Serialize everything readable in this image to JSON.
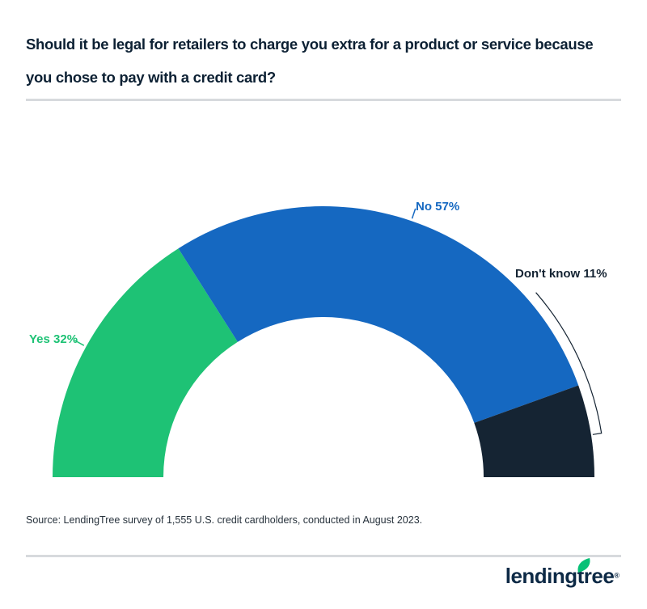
{
  "chart_data": {
    "type": "pie",
    "variant": "half-donut",
    "title": "Should it be legal for retailers to charge you extra for a product or service because you chose to pay with a credit card?",
    "unit": "%",
    "start_angle_deg": 180,
    "end_angle_deg": 0,
    "inner_radius_ratio": 0.59,
    "legend_position": "labels-around-arc",
    "segments": [
      {
        "name": "Yes",
        "value": 32,
        "label": "Yes 32%",
        "color": "#1EC275",
        "callout": "tick"
      },
      {
        "name": "No",
        "value": 57,
        "label": "No 57%",
        "color": "#1568C1",
        "callout": "tick"
      },
      {
        "name": "Don't know",
        "value": 11,
        "label": "Don't know 11%",
        "color": "#152433",
        "callout": "bracket"
      }
    ]
  },
  "source": {
    "text": "Source: LendingTree survey of 1,555 U.S. credit cardholders, conducted in August 2023."
  },
  "logo": {
    "text": "lendingtree",
    "registered_mark": "®",
    "leaf_color": "#08C177",
    "text_color": "#0D2A46"
  }
}
